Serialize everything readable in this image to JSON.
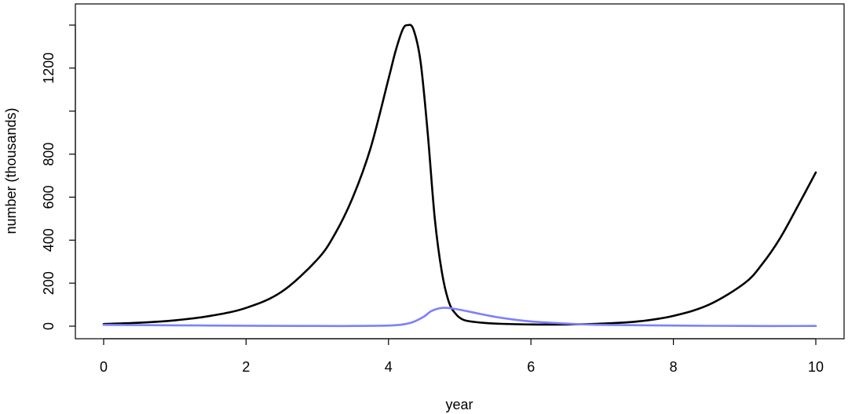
{
  "chart_data": {
    "type": "line",
    "title": "",
    "xlabel": "year",
    "ylabel": "number (thousands)",
    "xlim": [
      0,
      10
    ],
    "ylim": [
      0,
      1440
    ],
    "x_ticks": [
      0,
      2,
      4,
      6,
      8,
      10
    ],
    "x_tick_labels": [
      "0",
      "2",
      "4",
      "6",
      "8",
      "10"
    ],
    "y_ticks": [
      0,
      200,
      400,
      600,
      800,
      1000,
      1200,
      1400
    ],
    "y_tick_labels": [
      "0",
      "200",
      "400",
      "600",
      "800",
      "",
      "1200",
      ""
    ],
    "grid": false,
    "legend": "none",
    "series": [
      {
        "color": "#000000",
        "x": [
          0,
          0.5,
          1,
          1.5,
          2,
          2.5,
          3,
          3.25,
          3.5,
          3.75,
          4,
          4.1,
          4.2,
          4.27,
          4.35,
          4.45,
          4.55,
          4.65,
          4.75,
          4.85,
          4.95,
          5.05,
          5.2,
          5.5,
          6,
          6.5,
          7,
          7.5,
          8,
          8.5,
          9,
          9.25,
          9.5,
          9.75,
          10
        ],
        "y": [
          10,
          16,
          27,
          48,
          85,
          160,
          310,
          430,
          600,
          830,
          1150,
          1280,
          1380,
          1400,
          1380,
          1230,
          900,
          500,
          250,
          110,
          55,
          30,
          20,
          12,
          8,
          8,
          12,
          22,
          48,
          100,
          200,
          290,
          410,
          560,
          715
        ]
      },
      {
        "color": "#7f7fff",
        "x": [
          0,
          1,
          2,
          3,
          3.5,
          4,
          4.2,
          4.35,
          4.5,
          4.6,
          4.75,
          4.9,
          5.1,
          5.3,
          5.6,
          6,
          6.5,
          7,
          8,
          9,
          10
        ],
        "y": [
          6,
          4,
          2,
          1,
          1,
          3,
          8,
          20,
          45,
          70,
          85,
          82,
          70,
          56,
          38,
          22,
          12,
          6,
          3,
          1,
          1
        ]
      }
    ]
  }
}
